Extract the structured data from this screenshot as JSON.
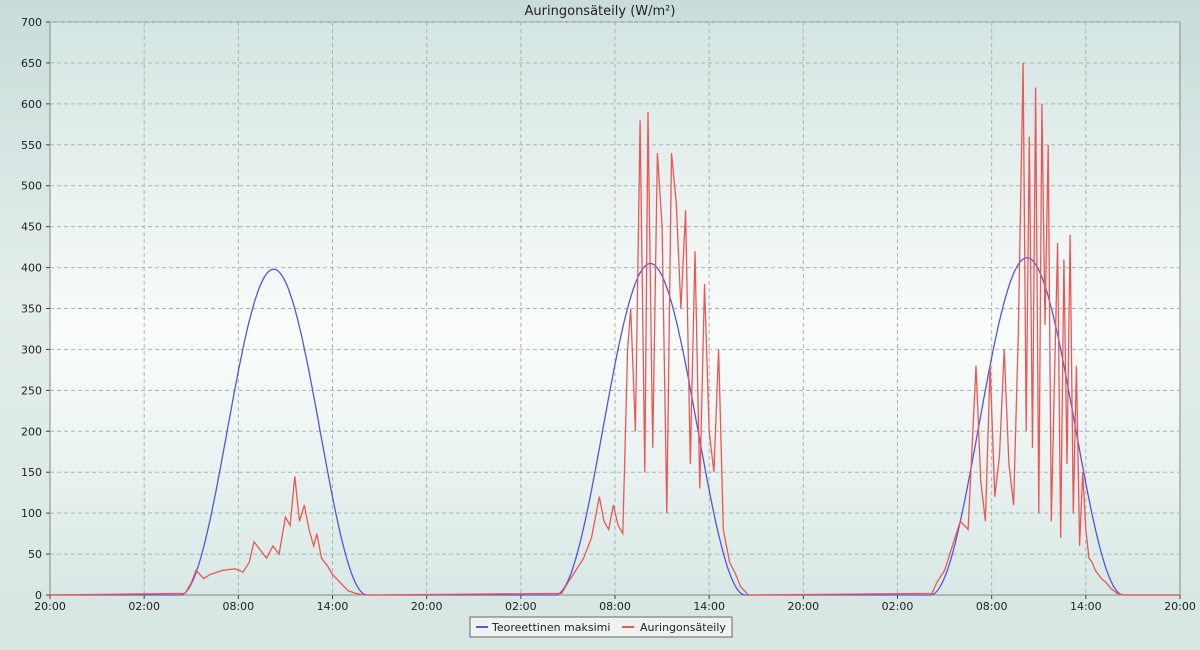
{
  "chart_data": {
    "type": "line",
    "title": "Auringonsäteily (W/m²)",
    "xlabel": "",
    "ylabel": "",
    "x_tick_labels": [
      "20:00",
      "02:00",
      "08:00",
      "14:00",
      "20:00",
      "02:00",
      "08:00",
      "14:00",
      "20:00",
      "02:00",
      "08:00",
      "14:00",
      "20:00"
    ],
    "x_range_hours": [
      0,
      72
    ],
    "ylim": [
      0,
      700
    ],
    "y_ticks": [
      0,
      50,
      100,
      150,
      200,
      250,
      300,
      350,
      400,
      450,
      500,
      550,
      600,
      650,
      700
    ],
    "grid": true,
    "legend": "bottom-center",
    "series": [
      {
        "name": "Teoreettinen maksimi",
        "color": "#5555dd",
        "days": [
          {
            "sunrise_h": 8.3,
            "sunset_h": 20.2,
            "peak": 398
          },
          {
            "sunrise_h": 32.2,
            "sunset_h": 44.3,
            "peak": 405
          },
          {
            "sunrise_h": 56.1,
            "sunset_h": 68.4,
            "peak": 412
          }
        ]
      },
      {
        "name": "Auringonsäteily",
        "color": "#ee5555",
        "points_x_hours": [
          0,
          8.6,
          9.0,
          9.3,
          9.8,
          10.2,
          11.0,
          11.8,
          12.3,
          12.7,
          13.0,
          13.4,
          13.8,
          14.2,
          14.6,
          15.0,
          15.3,
          15.6,
          15.9,
          16.2,
          16.5,
          16.8,
          17.0,
          17.3,
          17.7,
          18.0,
          18.5,
          19.0,
          19.5,
          20.0,
          20.3,
          32.6,
          33.0,
          33.5,
          34.0,
          34.5,
          35.0,
          35.3,
          35.6,
          35.9,
          36.2,
          36.5,
          36.8,
          37.0,
          37.3,
          37.6,
          37.9,
          38.1,
          38.4,
          38.7,
          39.0,
          39.3,
          39.6,
          39.9,
          40.2,
          40.5,
          40.8,
          41.1,
          41.4,
          41.7,
          42.0,
          42.3,
          42.6,
          42.9,
          43.3,
          43.7,
          44.0,
          44.5,
          56.2,
          56.5,
          57.0,
          57.5,
          58.0,
          58.5,
          59.0,
          59.3,
          59.6,
          59.9,
          60.2,
          60.5,
          60.8,
          61.1,
          61.4,
          61.7,
          62.0,
          62.2,
          62.4,
          62.6,
          62.8,
          63.0,
          63.2,
          63.4,
          63.6,
          63.8,
          64.0,
          64.2,
          64.4,
          64.6,
          64.8,
          65.0,
          65.2,
          65.4,
          65.6,
          65.8,
          66.0,
          66.2,
          66.4,
          66.6,
          66.8,
          67.0,
          67.3,
          67.6,
          68.0,
          68.4,
          72
        ],
        "points_y": [
          0,
          2,
          15,
          30,
          20,
          25,
          30,
          32,
          28,
          40,
          65,
          55,
          45,
          60,
          50,
          95,
          85,
          145,
          90,
          110,
          80,
          60,
          75,
          45,
          35,
          25,
          15,
          5,
          2,
          0,
          0,
          2,
          15,
          30,
          45,
          70,
          120,
          90,
          80,
          110,
          85,
          75,
          300,
          350,
          200,
          580,
          150,
          590,
          180,
          540,
          450,
          100,
          540,
          480,
          350,
          470,
          160,
          420,
          130,
          380,
          200,
          150,
          300,
          80,
          40,
          25,
          10,
          0,
          2,
          15,
          30,
          60,
          90,
          80,
          280,
          140,
          90,
          280,
          120,
          170,
          300,
          160,
          110,
          320,
          650,
          200,
          560,
          180,
          620,
          100,
          600,
          330,
          550,
          90,
          260,
          430,
          70,
          410,
          160,
          440,
          100,
          280,
          60,
          150,
          80,
          45,
          40,
          30,
          25,
          20,
          15,
          8,
          2,
          0,
          0
        ]
      }
    ]
  }
}
